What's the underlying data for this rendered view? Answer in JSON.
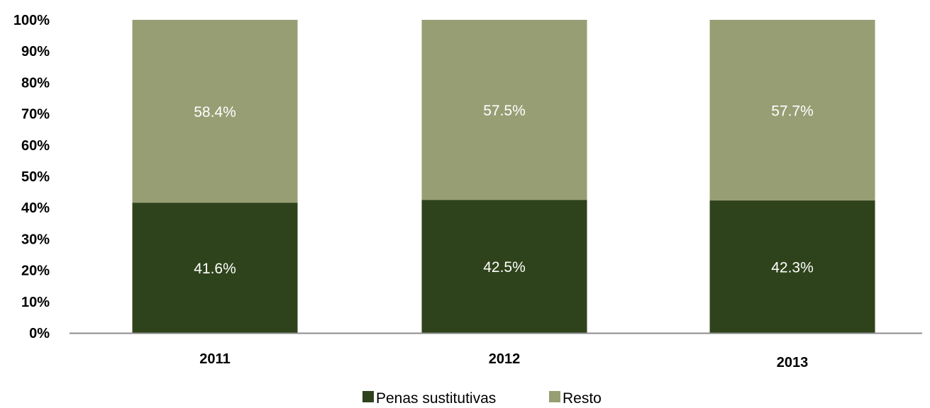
{
  "chart_data": {
    "type": "bar",
    "stacked": true,
    "categories": [
      "2011",
      "2012",
      "2013"
    ],
    "series": [
      {
        "name": "Penas sustitutivas",
        "values": [
          41.6,
          42.5,
          42.3
        ],
        "labels": [
          "41.6%",
          "42.5%",
          "42.3%"
        ],
        "color": "#2e431b"
      },
      {
        "name": "Resto",
        "values": [
          58.4,
          57.5,
          57.7
        ],
        "labels": [
          "58.4%",
          "57.5%",
          "57.7%"
        ],
        "color": "#989e74"
      }
    ],
    "ylim": [
      0,
      100
    ],
    "yticks": [
      "0%",
      "10%",
      "20%",
      "30%",
      "40%",
      "50%",
      "60%",
      "70%",
      "80%",
      "90%",
      "100%"
    ],
    "grid": false,
    "legend": "bottom",
    "axis_color": "#8c8c8c",
    "label_color": "#ffffff"
  }
}
